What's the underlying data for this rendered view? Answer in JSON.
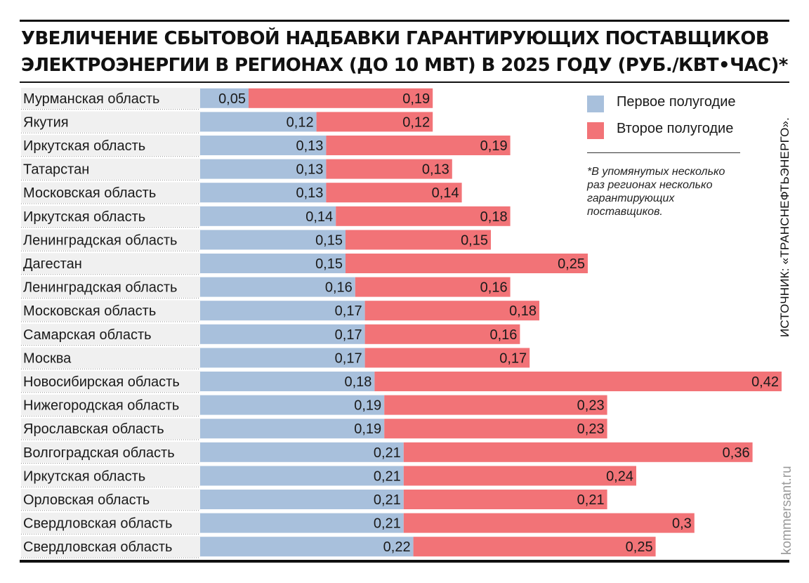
{
  "title_lines": [
    "УВЕЛИЧЕНИЕ СБЫТОВОЙ НАДБАВКИ ГАРАНТИРУЮЩИХ ПОСТАВЩИКОВ",
    "ЭЛЕКТРОЭНЕРГИИ В РЕГИОНАХ (ДО 10 МВТ) В 2025 ГОДУ (РУБ./КВТ•ЧАС)*"
  ],
  "legend": {
    "first_label": "Первое полугодие",
    "second_label": "Второе полугодие",
    "placement": "top-right"
  },
  "footnote": "*В упомянутых несколько раз регионах несколько гарантирующих поставщиков.",
  "source": "ИСТОЧНИК: «ТРАНСНЕФТЬЭНЕРГО».",
  "site": "kommersant.ru",
  "colors": {
    "first_half": "#a8c0dc",
    "second_half": "#f27377",
    "row_band": "#f0f0f0"
  },
  "chart_data": {
    "type": "bar",
    "orientation": "horizontal",
    "stacked": true,
    "categories": [
      "Мурманская область",
      "Якутия",
      "Иркутская область",
      "Татарстан",
      "Московская область",
      "Иркутская область",
      "Ленинградская область",
      "Дагестан",
      "Ленинградская область",
      "Московская область",
      "Самарская область",
      "Москва",
      "Новосибирская область",
      "Нижегородская область",
      "Ярославская область",
      "Волгоградская область",
      "Иркутская область",
      "Орловская область",
      "Свердловская область",
      "Свердловская область"
    ],
    "series": [
      {
        "name": "Первое полугодие",
        "values": [
          0.05,
          0.12,
          0.13,
          0.13,
          0.13,
          0.14,
          0.15,
          0.15,
          0.16,
          0.17,
          0.17,
          0.17,
          0.18,
          0.19,
          0.19,
          0.21,
          0.21,
          0.21,
          0.21,
          0.22
        ],
        "labels": [
          "0,05",
          "0,12",
          "0,13",
          "0,13",
          "0,13",
          "0,14",
          "0,15",
          "0,15",
          "0,16",
          "0,17",
          "0,17",
          "0,17",
          "0,18",
          "0,19",
          "0,19",
          "0,21",
          "0,21",
          "0,21",
          "0,21",
          "0,22"
        ]
      },
      {
        "name": "Второе полугодие",
        "values": [
          0.19,
          0.12,
          0.19,
          0.13,
          0.14,
          0.18,
          0.15,
          0.25,
          0.16,
          0.18,
          0.16,
          0.17,
          0.42,
          0.23,
          0.23,
          0.36,
          0.24,
          0.21,
          0.3,
          0.25
        ],
        "labels": [
          "0,19",
          "0,12",
          "0,19",
          "0,13",
          "0,14",
          "0,18",
          "0,15",
          "0,25",
          "0,16",
          "0,18",
          "0,16",
          "0,17",
          "0,42",
          "0,23",
          "0,23",
          "0,36",
          "0,24",
          "0,21",
          "0,3",
          "0,25"
        ]
      }
    ],
    "xlim": [
      0,
      0.6
    ],
    "grid": false
  }
}
